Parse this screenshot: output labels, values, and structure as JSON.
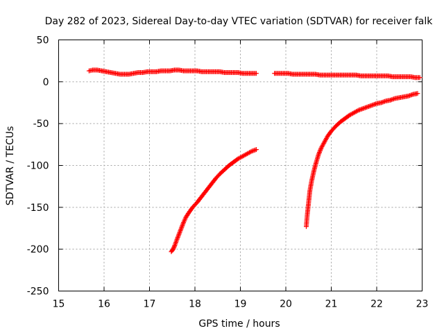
{
  "chart_data": {
    "type": "scatter",
    "title": "Day 282 of 2023, Sidereal Day-to-day VTEC variation (SDTVAR) for receiver falk",
    "xlabel": "GPS time / hours",
    "ylabel": "SDTVAR / TECUs",
    "xlim": [
      15,
      23
    ],
    "ylim": [
      -250,
      50
    ],
    "xticks": [
      15,
      16,
      17,
      18,
      19,
      20,
      21,
      22,
      23
    ],
    "yticks": [
      -250,
      -200,
      -150,
      -100,
      -50,
      0,
      50
    ],
    "grid": true,
    "marker": "plus",
    "color": "#ff0000",
    "series": [
      {
        "x": [
          15.67,
          15.75,
          15.85,
          15.95,
          16.05,
          16.15,
          16.25,
          16.35,
          16.45,
          16.55,
          16.65,
          16.75,
          16.85,
          16.95,
          17.05,
          17.15,
          17.25,
          17.35,
          17.45,
          17.55,
          17.65,
          17.75,
          17.85,
          17.95,
          18.05,
          18.15,
          18.25,
          18.35,
          18.45,
          18.55,
          18.65,
          18.75,
          18.85,
          18.95,
          19.05,
          19.15,
          19.25,
          19.35
        ],
        "y": [
          13,
          14,
          14,
          13,
          12,
          11,
          10,
          9,
          9,
          9,
          10,
          11,
          11,
          12,
          12,
          12,
          13,
          13,
          13,
          14,
          14,
          13,
          13,
          13,
          13,
          12,
          12,
          12,
          12,
          12,
          11,
          11,
          11,
          11,
          10,
          10,
          10,
          10
        ]
      },
      {
        "x": [
          19.75,
          19.85,
          19.95,
          20.05,
          20.15,
          20.25,
          20.35,
          20.45,
          20.55,
          20.65,
          20.75,
          20.85,
          20.95,
          21.05,
          21.15,
          21.25,
          21.35,
          21.45,
          21.55,
          21.65,
          21.75,
          21.85,
          21.95,
          22.05,
          22.15,
          22.25,
          22.35,
          22.45,
          22.55,
          22.65,
          22.75,
          22.85,
          22.95
        ],
        "y": [
          10,
          10,
          10,
          10,
          9,
          9,
          9,
          9,
          9,
          9,
          8,
          8,
          8,
          8,
          8,
          8,
          8,
          8,
          8,
          7,
          7,
          7,
          7,
          7,
          7,
          7,
          6,
          6,
          6,
          6,
          6,
          5,
          5
        ]
      },
      {
        "x": [
          17.48,
          17.52,
          17.56,
          17.6,
          17.65,
          17.7,
          17.75,
          17.8,
          17.87,
          17.95,
          18.05,
          18.15,
          18.25,
          18.35,
          18.45,
          18.55,
          18.65,
          18.75,
          18.85,
          18.95,
          19.05,
          19.15,
          19.25,
          19.35
        ],
        "y": [
          -203,
          -200,
          -195,
          -189,
          -182,
          -175,
          -168,
          -162,
          -156,
          -150,
          -144,
          -137,
          -130,
          -123,
          -116,
          -110,
          -105,
          -100,
          -96,
          -92,
          -89,
          -86,
          -83,
          -81
        ]
      },
      {
        "x": [
          20.45,
          20.47,
          20.5,
          20.53,
          20.57,
          20.62,
          20.67,
          20.72,
          20.78,
          20.85,
          20.92,
          21.0,
          21.1,
          21.2,
          21.3,
          21.4,
          21.5,
          21.6,
          21.7,
          21.8,
          21.9,
          22.0,
          22.1,
          22.2,
          22.3,
          22.4,
          22.5,
          22.6,
          22.7,
          22.8,
          22.9
        ],
        "y": [
          -173,
          -160,
          -145,
          -130,
          -118,
          -106,
          -96,
          -87,
          -79,
          -72,
          -65,
          -59,
          -53,
          -48,
          -44,
          -40,
          -37,
          -34,
          -32,
          -30,
          -28,
          -26,
          -25,
          -23,
          -22,
          -20,
          -19,
          -18,
          -17,
          -15,
          -14
        ]
      }
    ]
  }
}
